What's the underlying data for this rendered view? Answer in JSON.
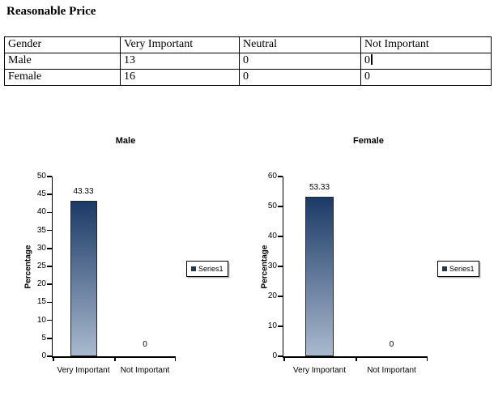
{
  "page": {
    "title": "Reasonable Price"
  },
  "table": {
    "columns": [
      "Gender",
      "Very Important",
      "Neutral",
      "Not Important"
    ],
    "rows": [
      {
        "label": "Male",
        "cells": [
          "Male",
          "13",
          "0",
          "0"
        ],
        "caret_after_cell": 3
      },
      {
        "label": "Female",
        "cells": [
          "Female",
          "16",
          "0",
          "0"
        ],
        "caret_after_cell": -1
      }
    ],
    "border_color": "#000000"
  },
  "chart_data": [
    {
      "type": "bar",
      "title": "Male",
      "categories": [
        "Very Important",
        "Not Important"
      ],
      "series": [
        {
          "name": "Series1",
          "values": [
            43.33,
            0
          ]
        }
      ],
      "data_labels": [
        "43.33",
        "0"
      ],
      "xlabel": "",
      "ylabel": "Percentage",
      "ylim": [
        0,
        50
      ],
      "ytick_step": 5,
      "grid": false,
      "legend_position": "right",
      "bar_gradient": {
        "top": "#1b3a66",
        "bottom": "#a9b9ce"
      },
      "bar_border": "#262626"
    },
    {
      "type": "bar",
      "title": "Female",
      "categories": [
        "Very Important",
        "Not Important"
      ],
      "series": [
        {
          "name": "Series1",
          "values": [
            53.33,
            0
          ]
        }
      ],
      "data_labels": [
        "53.33",
        "0"
      ],
      "xlabel": "",
      "ylabel": "Percentage",
      "ylim": [
        0,
        60
      ],
      "ytick_step": 10,
      "grid": false,
      "legend_position": "right",
      "bar_gradient": {
        "top": "#1b3a66",
        "bottom": "#a9b9ce"
      },
      "bar_border": "#262626"
    }
  ],
  "colors": {
    "background": "#ffffff",
    "axis": "#000000",
    "text": "#000000"
  }
}
